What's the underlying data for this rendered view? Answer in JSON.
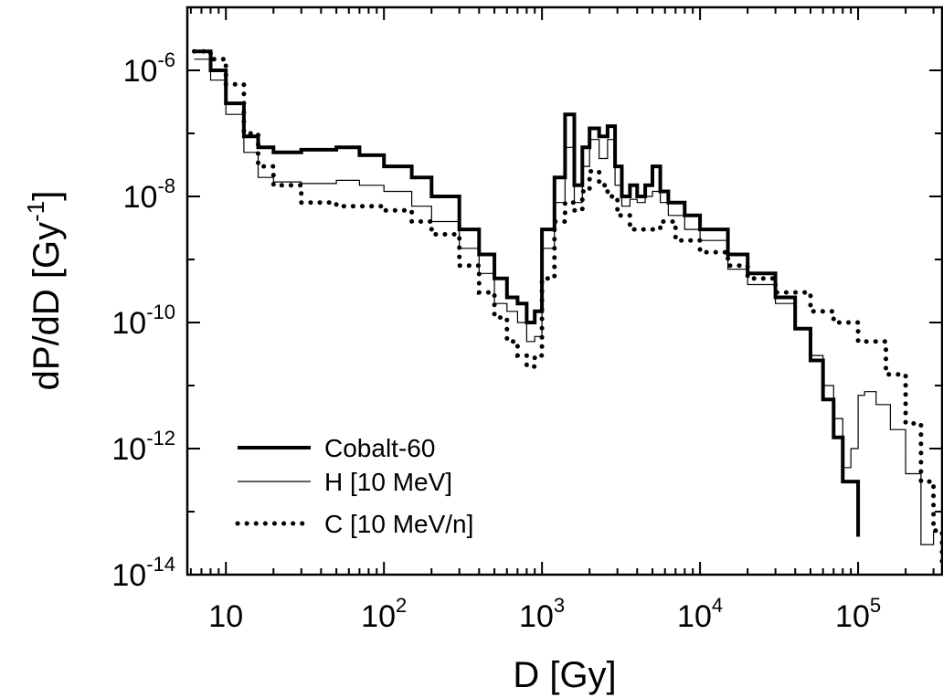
{
  "chart_data": {
    "type": "line",
    "title": "",
    "xlabel": "D [Gy]",
    "ylabel": {
      "base": "dP/dD [Gy",
      "sup": "-1",
      "close": "]"
    },
    "x_scale": "log",
    "y_scale": "log",
    "xlim": [
      5.7,
      340000
    ],
    "ylim": [
      1e-14,
      1e-05
    ],
    "x_ticks": [
      {
        "value": 10,
        "base": "10",
        "exp": ""
      },
      {
        "value": 100,
        "base": "10",
        "exp": "2"
      },
      {
        "value": 1000,
        "base": "10",
        "exp": "3"
      },
      {
        "value": 10000,
        "base": "10",
        "exp": "4"
      },
      {
        "value": 100000,
        "base": "10",
        "exp": "5"
      }
    ],
    "y_ticks": [
      {
        "value": 1e-06,
        "base": "10",
        "exp": "-6"
      },
      {
        "value": 1e-08,
        "base": "10",
        "exp": "-8"
      },
      {
        "value": 1e-10,
        "base": "10",
        "exp": "-10"
      },
      {
        "value": 1e-12,
        "base": "10",
        "exp": "-12"
      },
      {
        "value": 1e-14,
        "base": "10",
        "exp": "-14"
      }
    ],
    "grid": false,
    "legend_position": "bottom-left",
    "series": [
      {
        "name": "Cobalt-60",
        "style": "thick",
        "color": "#000000",
        "x": [
          6.3,
          8,
          10,
          13,
          16,
          20,
          30,
          50,
          70,
          100,
          150,
          200,
          300,
          400,
          500,
          600,
          700,
          800,
          900,
          1000,
          1200,
          1400,
          1600,
          1800,
          2000,
          2300,
          2600,
          2900,
          3200,
          3600,
          4000,
          4500,
          5000,
          5600,
          6300,
          8000,
          10000,
          15000,
          20000,
          30000,
          40000,
          50000,
          60000,
          70000,
          80000,
          100000
        ],
        "y": [
          2e-06,
          1e-06,
          3e-07,
          9e-08,
          6e-08,
          5e-08,
          5.5e-08,
          6e-08,
          4.5e-08,
          3e-08,
          2e-08,
          1e-08,
          3e-09,
          1.2e-09,
          5e-10,
          2.5e-10,
          2e-10,
          1e-10,
          1.5e-10,
          3e-09,
          2e-08,
          2e-07,
          1.5e-08,
          6e-08,
          1.2e-07,
          9e-08,
          1.3e-07,
          3e-08,
          1e-08,
          1.5e-08,
          1e-08,
          1.5e-08,
          3e-08,
          1.2e-08,
          8e-09,
          5e-09,
          3e-09,
          1.2e-09,
          6e-10,
          2.5e-10,
          8e-11,
          2.5e-11,
          6e-12,
          1.5e-12,
          3e-13,
          4e-14
        ]
      },
      {
        "name": "H [10 MeV]",
        "style": "thin",
        "color": "#000000",
        "x": [
          6.3,
          8,
          10,
          13,
          16,
          20,
          30,
          50,
          70,
          100,
          150,
          200,
          300,
          400,
          500,
          600,
          700,
          800,
          900,
          1000,
          1200,
          1400,
          1600,
          1800,
          2000,
          2300,
          2600,
          2900,
          3200,
          3600,
          4000,
          4500,
          5000,
          5600,
          6300,
          8000,
          10000,
          15000,
          20000,
          30000,
          40000,
          50000,
          60000,
          70000,
          80000,
          90000,
          100000,
          110000,
          130000,
          160000,
          200000,
          250000,
          300000
        ],
        "y": [
          1.5e-06,
          7e-07,
          2e-07,
          5e-08,
          2e-08,
          1.7e-08,
          1.6e-08,
          1.8e-08,
          1.5e-08,
          1.2e-08,
          7e-09,
          4e-09,
          1.5e-09,
          6e-10,
          2e-10,
          1.5e-10,
          1e-10,
          5e-11,
          6e-11,
          1.5e-09,
          8e-09,
          6e-08,
          8e-09,
          3e-08,
          8e-08,
          4e-08,
          8e-08,
          1.5e-08,
          7e-09,
          9e-09,
          8e-09,
          1e-08,
          1.2e-08,
          8e-09,
          5e-09,
          3e-09,
          2e-09,
          7e-10,
          4e-10,
          2e-10,
          8e-11,
          3e-11,
          1e-11,
          3e-12,
          5e-13,
          1e-12,
          7e-12,
          8e-12,
          5e-12,
          2e-12,
          4e-13,
          3e-14,
          5e-14
        ]
      },
      {
        "name": "C [10 MeV/n]",
        "style": "dotted",
        "color": "#000000",
        "x": [
          6.3,
          8,
          10,
          13,
          16,
          20,
          30,
          50,
          70,
          100,
          150,
          200,
          300,
          400,
          500,
          600,
          700,
          800,
          900,
          1000,
          1200,
          1400,
          1600,
          1800,
          2000,
          2300,
          2600,
          3000,
          3600,
          4500,
          5600,
          7000,
          10000,
          15000,
          20000,
          30000,
          50000,
          70000,
          100000,
          150000,
          200000,
          250000,
          300000,
          340000
        ],
        "y": [
          2e-06,
          1.5e-06,
          6e-07,
          1e-07,
          3e-08,
          1.5e-08,
          8e-09,
          7e-09,
          7e-09,
          6e-09,
          4e-09,
          2.5e-09,
          8e-10,
          3e-10,
          1.2e-10,
          5e-11,
          3e-11,
          2e-11,
          3e-11,
          5e-10,
          4e-09,
          8e-09,
          6e-09,
          1.2e-08,
          2.5e-08,
          1.5e-08,
          1e-08,
          5e-09,
          3e-09,
          3e-09,
          4e-09,
          2e-09,
          1.3e-09,
          8e-10,
          5e-10,
          3e-10,
          1.5e-10,
          1e-10,
          5e-11,
          1.5e-11,
          2.5e-12,
          3e-13,
          5e-14,
          1.5e-14
        ]
      }
    ]
  }
}
